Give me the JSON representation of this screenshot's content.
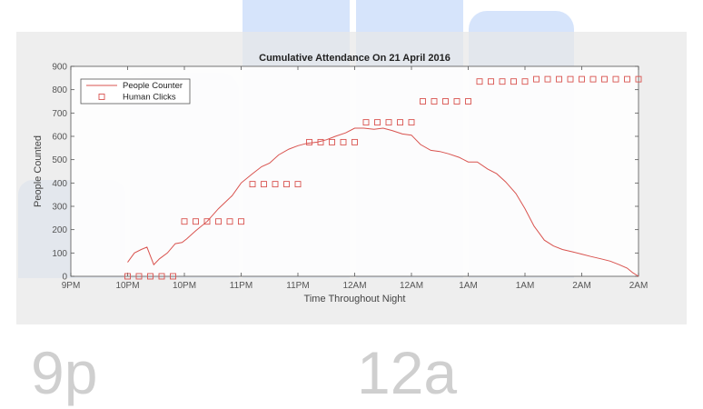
{
  "backdrop": {
    "time_labels": [
      "9p",
      "12a"
    ]
  },
  "chart_data": {
    "type": "line",
    "title": "Cumulative Attendance On 21 April 2016",
    "xlabel": "Time Throughout Night",
    "ylabel": "People Counted",
    "ylim": [
      0,
      900
    ],
    "yticks": [
      0,
      100,
      200,
      300,
      400,
      500,
      600,
      700,
      800,
      900
    ],
    "xlim": [
      21.0,
      26.0
    ],
    "xtick_values": [
      21.0,
      21.5,
      22.0,
      22.5,
      23.0,
      23.5,
      24.0,
      24.5,
      25.0,
      25.5,
      26.0
    ],
    "xtick_labels": [
      "9PM",
      "10PM",
      "10PM",
      "11PM",
      "11PM",
      "12AM",
      "12AM",
      "1AM",
      "1AM",
      "2AM",
      "2AM"
    ],
    "grid": false,
    "legend_position": "top-left",
    "colors": {
      "series": "#d9534f",
      "plot_bg": "#ffffff",
      "axes": "#555555"
    },
    "series": [
      {
        "name": "People Counter",
        "style": "line",
        "x": [
          21.5,
          21.56,
          21.62,
          21.67,
          21.73,
          21.78,
          21.85,
          21.92,
          21.98,
          22.02,
          22.1,
          22.2,
          22.3,
          22.42,
          22.5,
          22.6,
          22.68,
          22.75,
          22.83,
          22.92,
          23.0,
          23.08,
          23.17,
          23.25,
          23.33,
          23.42,
          23.5,
          23.58,
          23.67,
          23.75,
          23.83,
          23.92,
          24.0,
          24.08,
          24.17,
          24.25,
          24.33,
          24.42,
          24.5,
          24.58,
          24.67,
          24.75,
          24.83,
          24.92,
          25.0,
          25.08,
          25.17,
          25.25,
          25.33,
          25.42,
          25.5,
          25.58,
          25.67,
          25.75,
          25.83,
          25.9,
          25.95,
          26.0
        ],
        "y": [
          60,
          100,
          115,
          125,
          50,
          75,
          100,
          140,
          145,
          160,
          195,
          235,
          290,
          345,
          400,
          440,
          470,
          485,
          520,
          545,
          560,
          570,
          575,
          585,
          600,
          615,
          635,
          635,
          630,
          635,
          625,
          610,
          605,
          565,
          540,
          535,
          525,
          510,
          490,
          490,
          460,
          440,
          405,
          355,
          290,
          215,
          155,
          130,
          115,
          105,
          95,
          85,
          75,
          65,
          50,
          35,
          15,
          0
        ]
      },
      {
        "name": "Human Clicks",
        "style": "markers",
        "marker": "square",
        "x": [
          21.5,
          21.6,
          21.7,
          21.8,
          21.9,
          22.0,
          22.1,
          22.2,
          22.3,
          22.4,
          22.5,
          22.6,
          22.7,
          22.8,
          22.9,
          23.0,
          23.1,
          23.2,
          23.3,
          23.4,
          23.5,
          23.6,
          23.7,
          23.8,
          23.9,
          24.0,
          24.1,
          24.2,
          24.3,
          24.4,
          24.5,
          24.6,
          24.7,
          24.8,
          24.9,
          25.0,
          25.1,
          25.2,
          25.3,
          25.4,
          25.5,
          25.6,
          25.7,
          25.8,
          25.9,
          26.0
        ],
        "y": [
          0,
          0,
          0,
          0,
          0,
          235,
          235,
          235,
          235,
          235,
          235,
          395,
          395,
          395,
          395,
          395,
          575,
          575,
          575,
          575,
          575,
          660,
          660,
          660,
          660,
          660,
          750,
          750,
          750,
          750,
          750,
          835,
          835,
          835,
          835,
          835,
          845,
          845,
          845,
          845,
          845,
          845,
          845,
          845,
          845,
          845
        ]
      }
    ]
  }
}
